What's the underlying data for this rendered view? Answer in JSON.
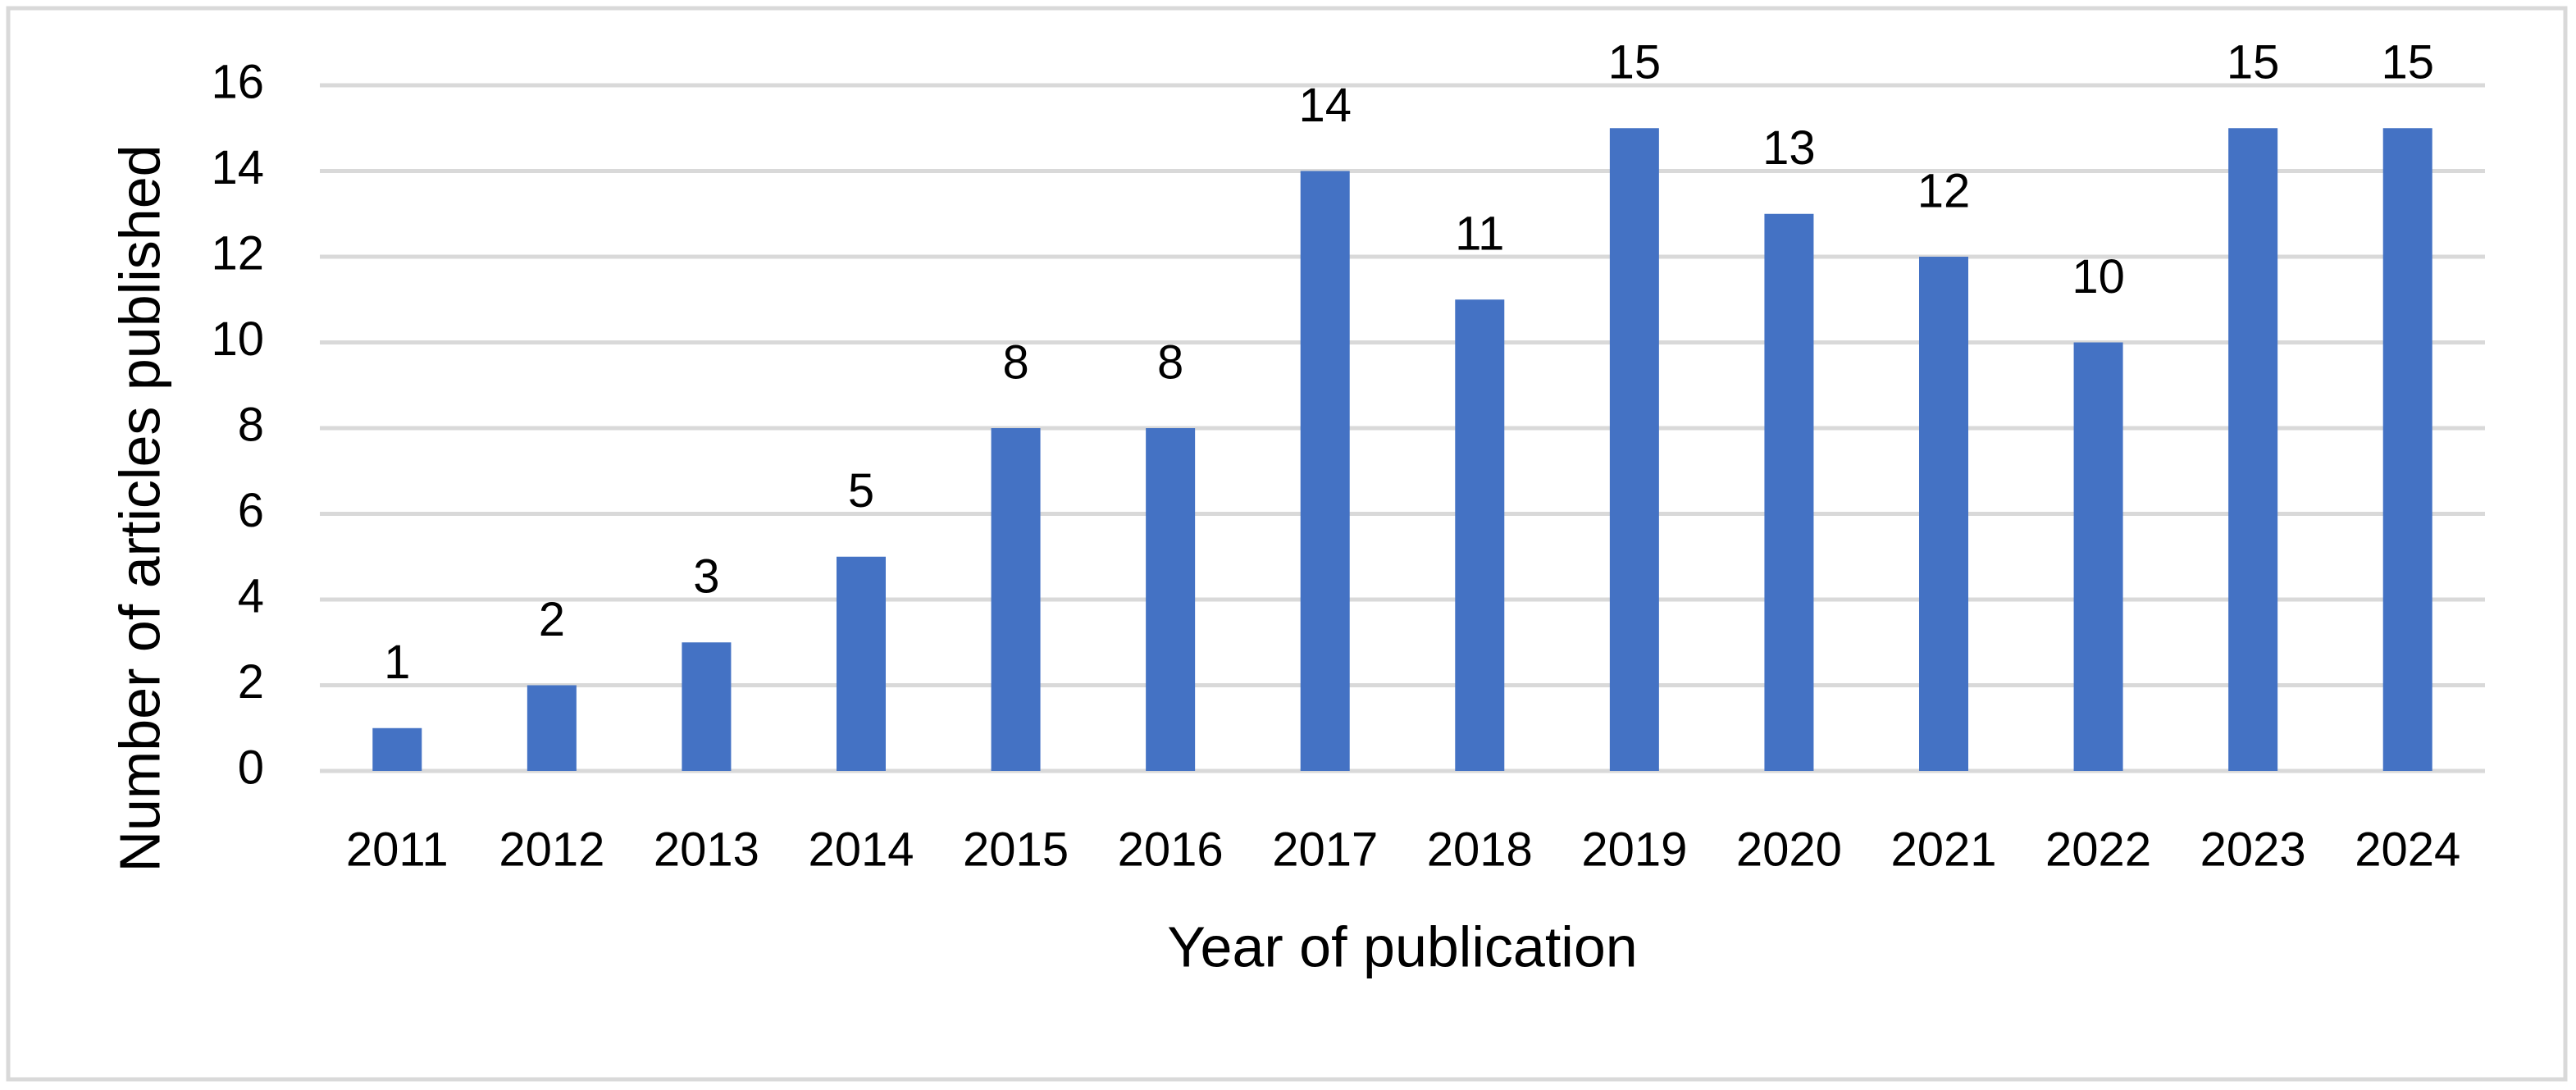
{
  "chart_data": {
    "type": "bar",
    "x_label": "Year of publication",
    "y_label": "Number of articles published",
    "categories": [
      "2011",
      "2012",
      "2013",
      "2014",
      "2015",
      "2016",
      "2017",
      "2018",
      "2019",
      "2020",
      "2021",
      "2022",
      "2023",
      "2024"
    ],
    "values": [
      1,
      2,
      3,
      5,
      8,
      8,
      14,
      11,
      15,
      13,
      12,
      10,
      15,
      15
    ],
    "color": "#4472c4",
    "ylim": [
      0,
      16
    ],
    "yticks": [
      0,
      2,
      4,
      6,
      8,
      10,
      12,
      14,
      16
    ],
    "grid": true,
    "data_labels": true
  }
}
